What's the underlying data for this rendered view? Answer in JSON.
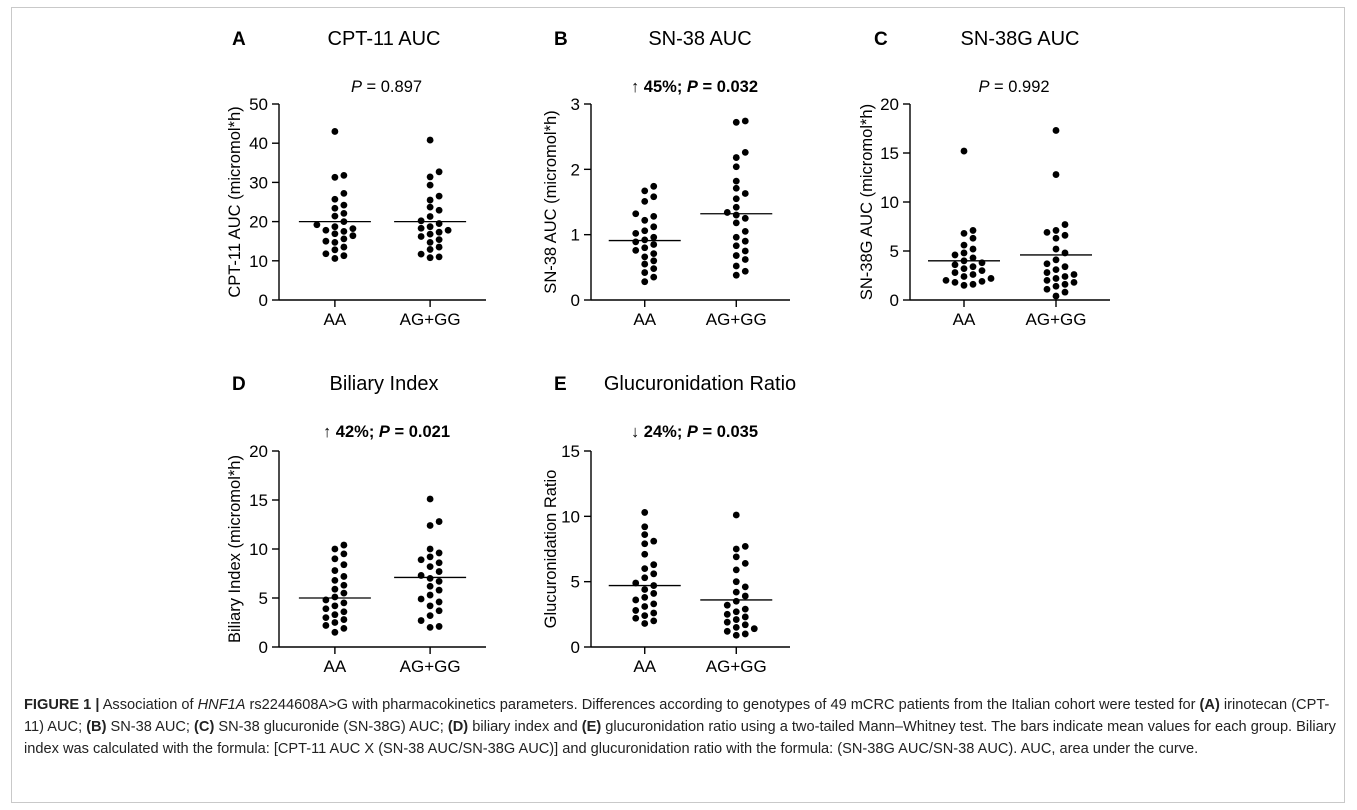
{
  "chart_data": [
    {
      "type": "scatter",
      "panel_letter": "A",
      "title": "CPT-11 AUC",
      "annotation_prefix": "",
      "annotation_p": "P",
      "annotation_suffix": " = 0.897",
      "annotation_bold": false,
      "ylabel": "CPT-11 AUC (micromol*h)",
      "ylim": [
        0,
        50
      ],
      "yticks": [
        0,
        10,
        20,
        30,
        40,
        50
      ],
      "categories": [
        "AA",
        "AG+GG"
      ],
      "means": [
        20,
        20
      ],
      "series": [
        {
          "name": "AA",
          "values": [
            43,
            31.8,
            31.3,
            27.2,
            25.7,
            24.2,
            23.4,
            22.1,
            21.4,
            20.0,
            19.2,
            18.7,
            18.2,
            17.8,
            17.5,
            16.9,
            16.4,
            15.6,
            15.0,
            14.7,
            13.5,
            12.8,
            11.8,
            11.3,
            10.6
          ]
        },
        {
          "name": "AG+GG",
          "values": [
            40.8,
            32.7,
            31.4,
            29.3,
            26.5,
            25.5,
            23.7,
            22.9,
            21.3,
            20.2,
            19.5,
            18.7,
            18.3,
            17.8,
            17.3,
            16.8,
            16.2,
            15.4,
            14.7,
            13.5,
            12.9,
            11.7,
            11.0,
            10.8
          ]
        }
      ]
    },
    {
      "type": "scatter",
      "panel_letter": "B",
      "title": "SN-38 AUC",
      "annotation_prefix": "↑ 45%; ",
      "annotation_p": "P",
      "annotation_suffix": " = 0.032",
      "annotation_bold": true,
      "ylabel": "SN-38 AUC (micromol*h)",
      "ylim": [
        0,
        3
      ],
      "yticks": [
        0,
        1,
        2,
        3
      ],
      "categories": [
        "AA",
        "AG+GG"
      ],
      "means": [
        0.91,
        1.32
      ],
      "series": [
        {
          "name": "AA",
          "values": [
            1.74,
            1.67,
            1.58,
            1.51,
            1.32,
            1.28,
            1.22,
            1.12,
            1.06,
            1.02,
            0.96,
            0.92,
            0.89,
            0.85,
            0.8,
            0.76,
            0.71,
            0.66,
            0.6,
            0.55,
            0.48,
            0.42,
            0.35,
            0.28
          ]
        },
        {
          "name": "AG+GG",
          "values": [
            2.74,
            2.72,
            2.26,
            2.18,
            2.04,
            1.82,
            1.71,
            1.63,
            1.55,
            1.42,
            1.34,
            1.3,
            1.25,
            1.18,
            1.05,
            0.96,
            0.9,
            0.83,
            0.75,
            0.68,
            0.62,
            0.52,
            0.44,
            0.38
          ]
        }
      ]
    },
    {
      "type": "scatter",
      "panel_letter": "C",
      "title": "SN-38G AUC",
      "annotation_prefix": "",
      "annotation_p": "P",
      "annotation_suffix": " = 0.992",
      "annotation_bold": false,
      "ylabel": "SN-38G  AUC (micromol*h)",
      "ylim": [
        0,
        20
      ],
      "yticks": [
        0,
        5,
        10,
        15,
        20
      ],
      "categories": [
        "AA",
        "AG+GG"
      ],
      "means": [
        4.0,
        4.6
      ],
      "series": [
        {
          "name": "AA",
          "values": [
            15.2,
            7.1,
            6.8,
            6.3,
            5.6,
            5.2,
            4.8,
            4.6,
            4.3,
            4.0,
            3.8,
            3.6,
            3.4,
            3.2,
            3.0,
            2.8,
            2.6,
            2.4,
            2.2,
            2.0,
            1.9,
            1.8,
            1.6,
            1.5
          ]
        },
        {
          "name": "AG+GG",
          "values": [
            17.3,
            12.8,
            7.7,
            7.1,
            6.9,
            6.6,
            6.3,
            5.2,
            4.8,
            4.1,
            3.7,
            3.4,
            3.1,
            2.8,
            2.6,
            2.4,
            2.2,
            2.0,
            1.8,
            1.6,
            1.4,
            1.1,
            0.8,
            0.4
          ]
        }
      ]
    },
    {
      "type": "scatter",
      "panel_letter": "D",
      "title": "Biliary Index",
      "annotation_prefix": "↑ 42%; ",
      "annotation_p": "P",
      "annotation_suffix": " = 0.021",
      "annotation_bold": true,
      "ylabel": "Biliary Index (micromol*h)",
      "ylim": [
        0,
        20
      ],
      "yticks": [
        0,
        5,
        10,
        15,
        20
      ],
      "categories": [
        "AA",
        "AG+GG"
      ],
      "means": [
        5.0,
        7.1
      ],
      "series": [
        {
          "name": "AA",
          "values": [
            10.4,
            10.0,
            9.5,
            9.0,
            8.4,
            7.8,
            7.2,
            6.8,
            6.3,
            5.9,
            5.5,
            5.1,
            4.8,
            4.5,
            4.2,
            3.9,
            3.6,
            3.3,
            3.0,
            2.8,
            2.5,
            2.2,
            1.9,
            1.5
          ]
        },
        {
          "name": "AG+GG",
          "values": [
            15.1,
            12.8,
            12.4,
            10.0,
            9.6,
            9.2,
            8.9,
            8.6,
            8.2,
            7.7,
            7.3,
            7.0,
            6.7,
            6.2,
            5.8,
            5.3,
            4.9,
            4.6,
            4.2,
            3.7,
            3.2,
            2.7,
            2.1,
            2.0
          ]
        }
      ]
    },
    {
      "type": "scatter",
      "panel_letter": "E",
      "title": "Glucuronidation Ratio",
      "annotation_prefix": "↓ 24%; ",
      "annotation_p": "P",
      "annotation_suffix": " = 0.035",
      "annotation_bold": true,
      "ylabel": "Glucuronidation Ratio",
      "ylim": [
        0,
        15
      ],
      "yticks": [
        0,
        5,
        10,
        15
      ],
      "categories": [
        "AA",
        "AG+GG"
      ],
      "means": [
        4.7,
        3.6
      ],
      "series": [
        {
          "name": "AA",
          "values": [
            10.3,
            9.2,
            8.6,
            8.1,
            7.9,
            7.1,
            6.3,
            6.0,
            5.6,
            5.3,
            4.9,
            4.7,
            4.4,
            4.1,
            3.8,
            3.6,
            3.3,
            3.1,
            2.8,
            2.6,
            2.4,
            2.2,
            2.0,
            1.8
          ]
        },
        {
          "name": "AG+GG",
          "values": [
            10.1,
            7.7,
            7.5,
            6.9,
            6.4,
            5.9,
            5.0,
            4.6,
            4.2,
            3.9,
            3.5,
            3.2,
            2.9,
            2.7,
            2.5,
            2.3,
            2.1,
            1.9,
            1.7,
            1.5,
            1.4,
            1.2,
            1.0,
            0.9
          ]
        }
      ]
    }
  ],
  "caption": {
    "label": "FIGURE 1 |",
    "t1": " Association of ",
    "gene": "HNF1A",
    "t2": " rs2244608A>G with pharmacokinetics parameters. Differences according to genotypes of 49 mCRC patients from the Italian cohort were tested for ",
    "ma": "(A)",
    "t3": " irinotecan (CPT-11) AUC; ",
    "mb": "(B)",
    "t4": " SN-38 AUC; ",
    "mc": "(C)",
    "t5": " SN-38 glucuronide (SN-38G) AUC; ",
    "md": "(D)",
    "t6": " biliary index and ",
    "me": "(E)",
    "t7": " glucuronidation ratio using a two-tailed Mann–Whitney test. The bars indicate mean values for each group. Biliary index was calculated with the formula: [CPT-11 AUC X (SN-38 AUC/SN-38G AUC)] and glucuronidation ratio with the formula: (SN-38G AUC/SN-38 AUC). AUC, area under the curve."
  }
}
